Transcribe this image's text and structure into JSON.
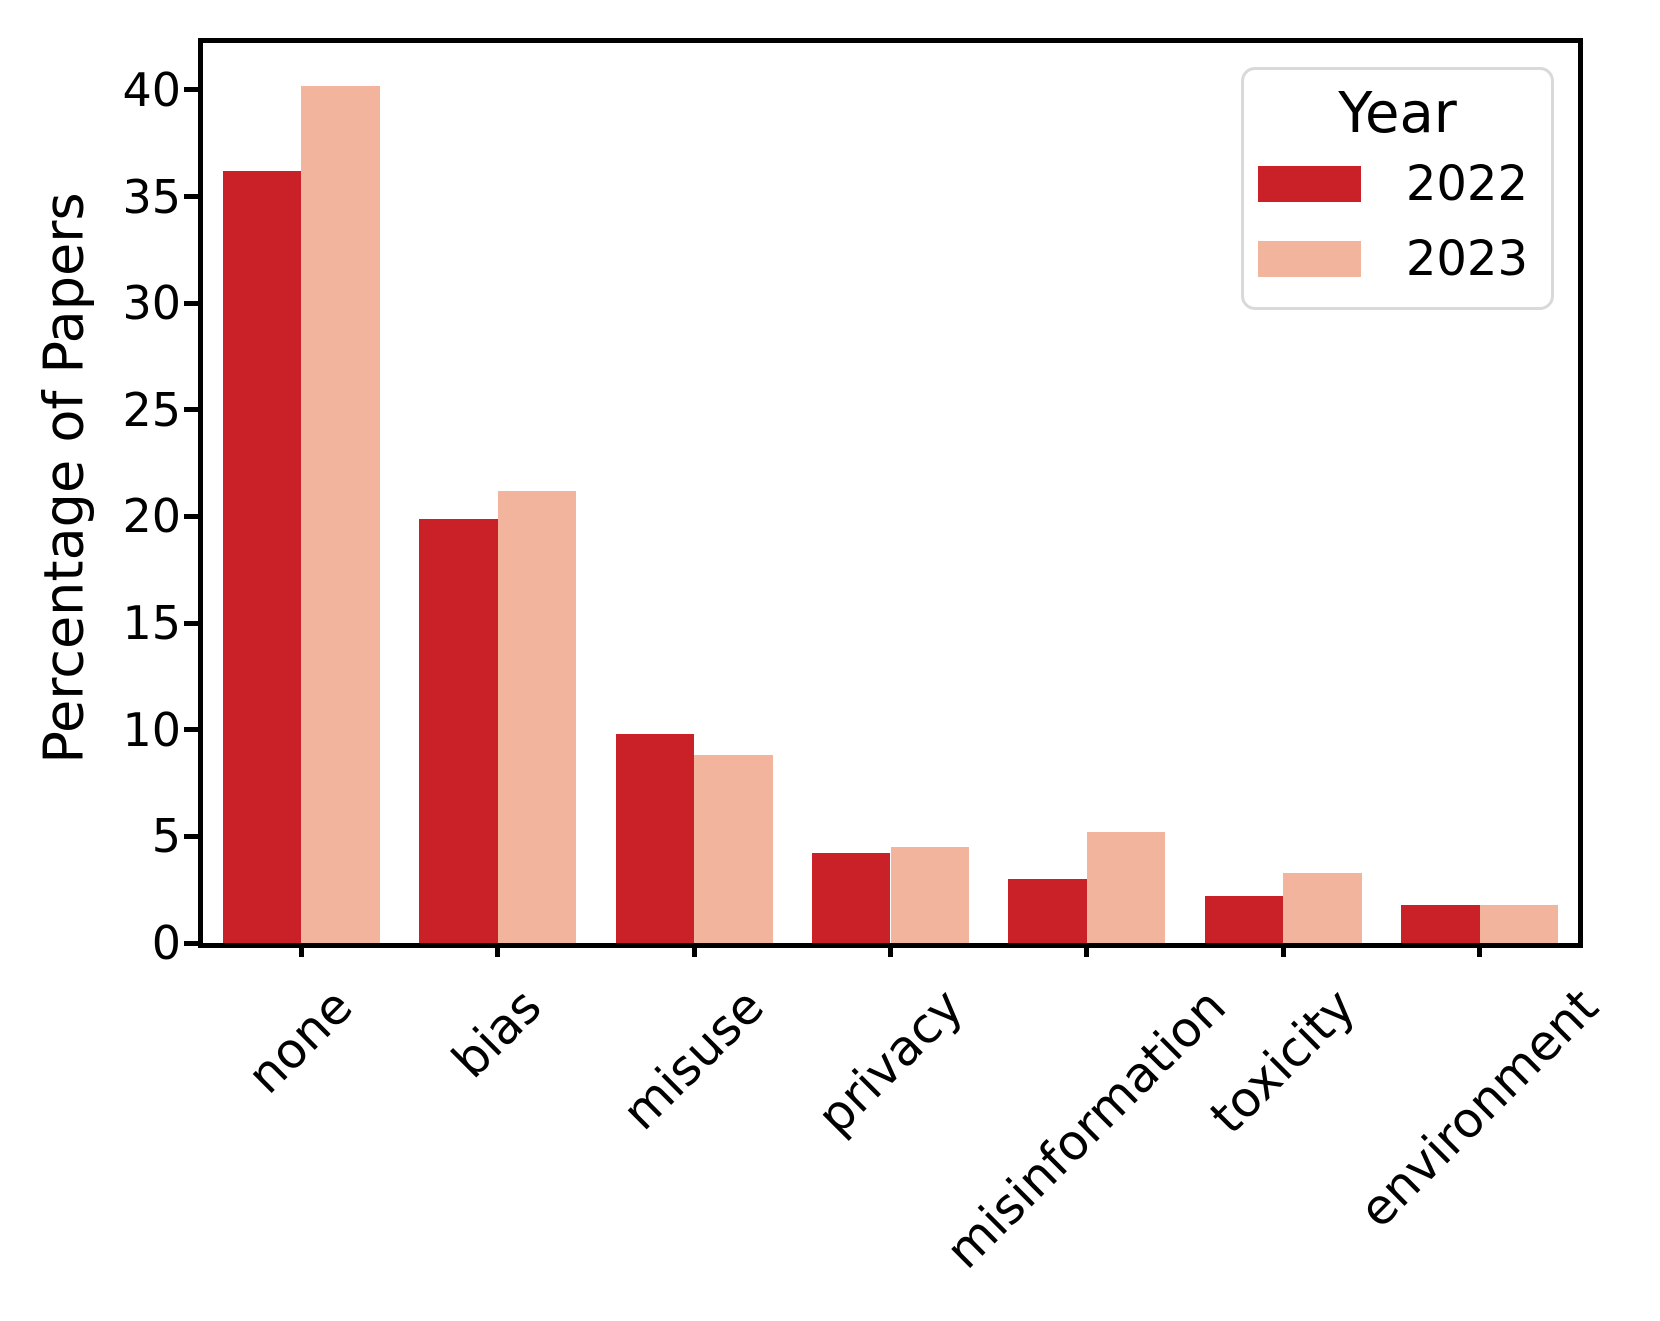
{
  "chart_data": {
    "type": "bar",
    "title": "",
    "xlabel": "",
    "ylabel": "Percentage of Papers",
    "categories": [
      "none",
      "bias",
      "misuse",
      "privacy",
      "misinformation",
      "toxicity",
      "environment"
    ],
    "series": [
      {
        "name": "2022",
        "color": "#ca2027",
        "values": [
          36.2,
          19.9,
          9.8,
          4.2,
          3.0,
          2.2,
          1.8
        ]
      },
      {
        "name": "2023",
        "color": "#f2b49d",
        "values": [
          40.2,
          21.2,
          8.8,
          4.5,
          5.2,
          3.3,
          1.8
        ]
      }
    ],
    "ylim": [
      0,
      42.2
    ],
    "yticks": [
      0,
      5,
      10,
      15,
      20,
      25,
      30,
      35,
      40
    ],
    "xtick_rotation_deg": 45,
    "grid": false,
    "legend": {
      "title": "Year",
      "position": "upper-right"
    },
    "axis_color": "#000000",
    "background_color": "#ffffff"
  }
}
